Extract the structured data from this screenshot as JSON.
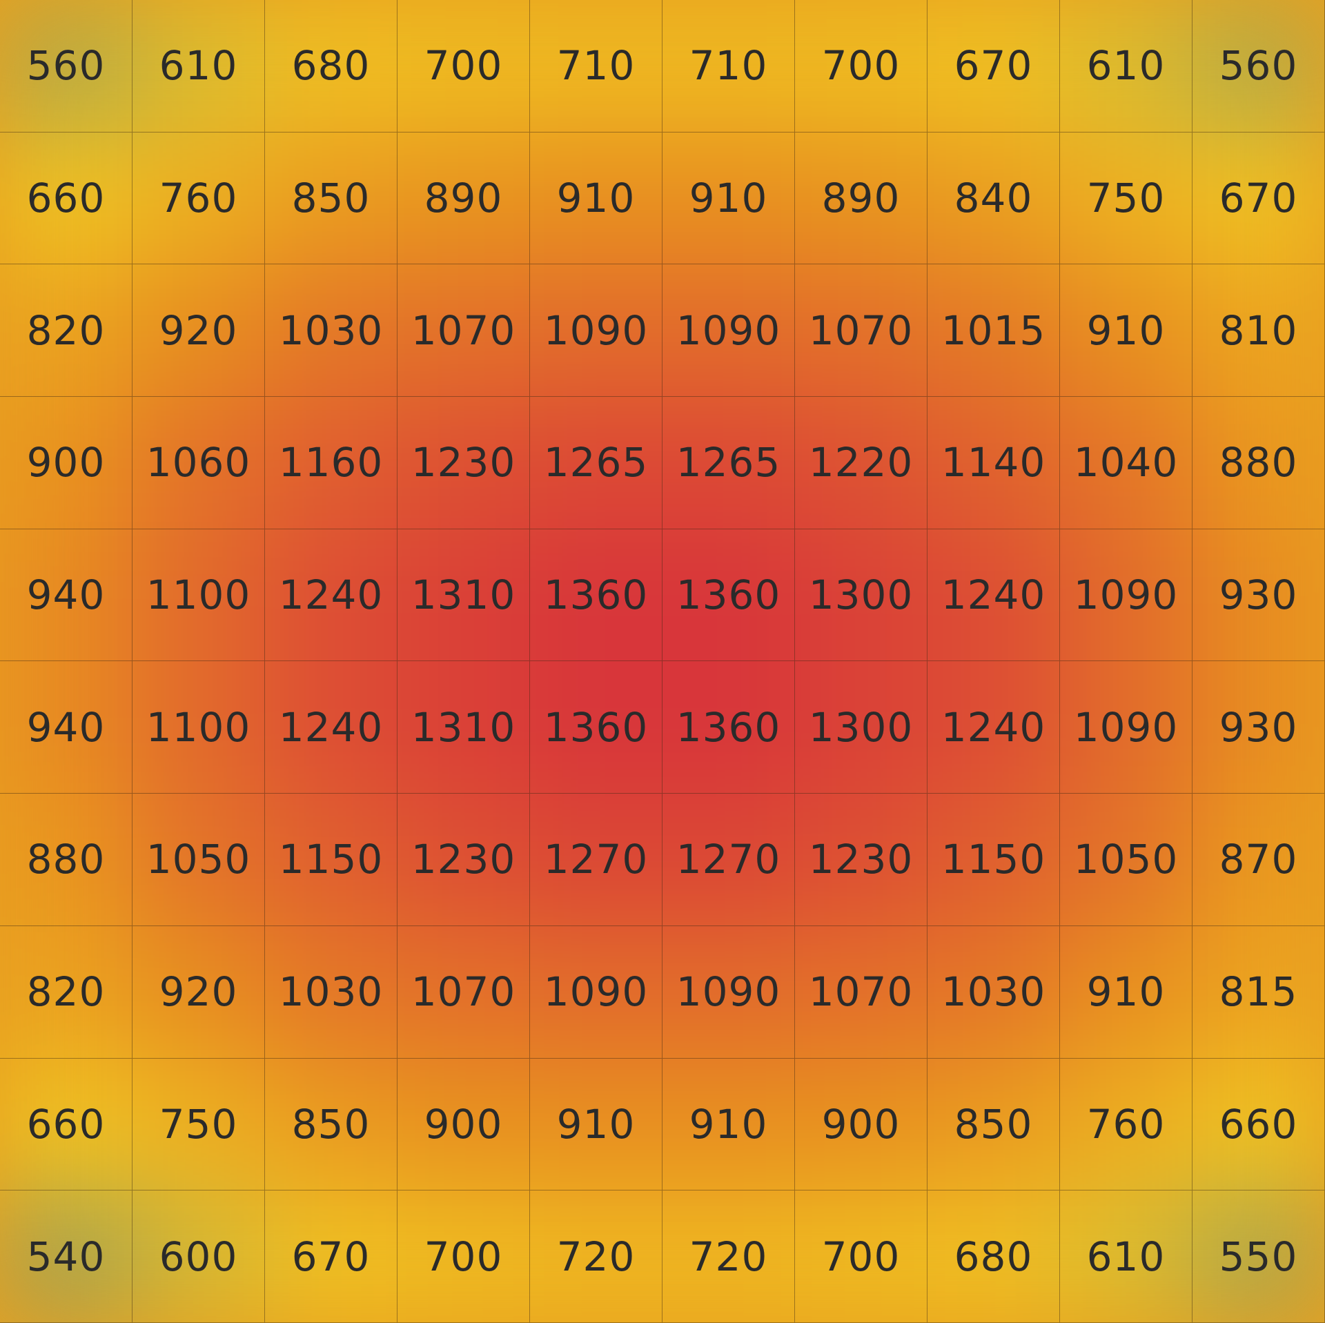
{
  "chart_data": {
    "type": "heatmap",
    "title": "",
    "rows": 10,
    "cols": 10,
    "values": [
      [
        560,
        610,
        680,
        700,
        710,
        710,
        700,
        670,
        610,
        560
      ],
      [
        660,
        760,
        850,
        890,
        910,
        910,
        890,
        840,
        750,
        670
      ],
      [
        820,
        920,
        1030,
        1070,
        1090,
        1090,
        1070,
        1015,
        910,
        810
      ],
      [
        900,
        1060,
        1160,
        1230,
        1265,
        1265,
        1220,
        1140,
        1040,
        880
      ],
      [
        940,
        1100,
        1240,
        1310,
        1360,
        1360,
        1300,
        1240,
        1090,
        930
      ],
      [
        940,
        1100,
        1240,
        1310,
        1360,
        1360,
        1300,
        1240,
        1090,
        930
      ],
      [
        880,
        1050,
        1150,
        1230,
        1270,
        1270,
        1230,
        1150,
        1050,
        870
      ],
      [
        820,
        920,
        1030,
        1070,
        1090,
        1090,
        1070,
        1030,
        910,
        815
      ],
      [
        660,
        750,
        850,
        900,
        910,
        910,
        900,
        850,
        760,
        660
      ],
      [
        540,
        600,
        670,
        700,
        720,
        720,
        700,
        680,
        610,
        550
      ]
    ],
    "colorscale": [
      {
        "value": 540,
        "color": "#a9a44e"
      },
      {
        "value": 640,
        "color": "#f0c622"
      },
      {
        "value": 900,
        "color": "#e8921f"
      },
      {
        "value": 1150,
        "color": "#e0602f"
      },
      {
        "value": 1360,
        "color": "#d8363a"
      }
    ],
    "grid": true
  }
}
